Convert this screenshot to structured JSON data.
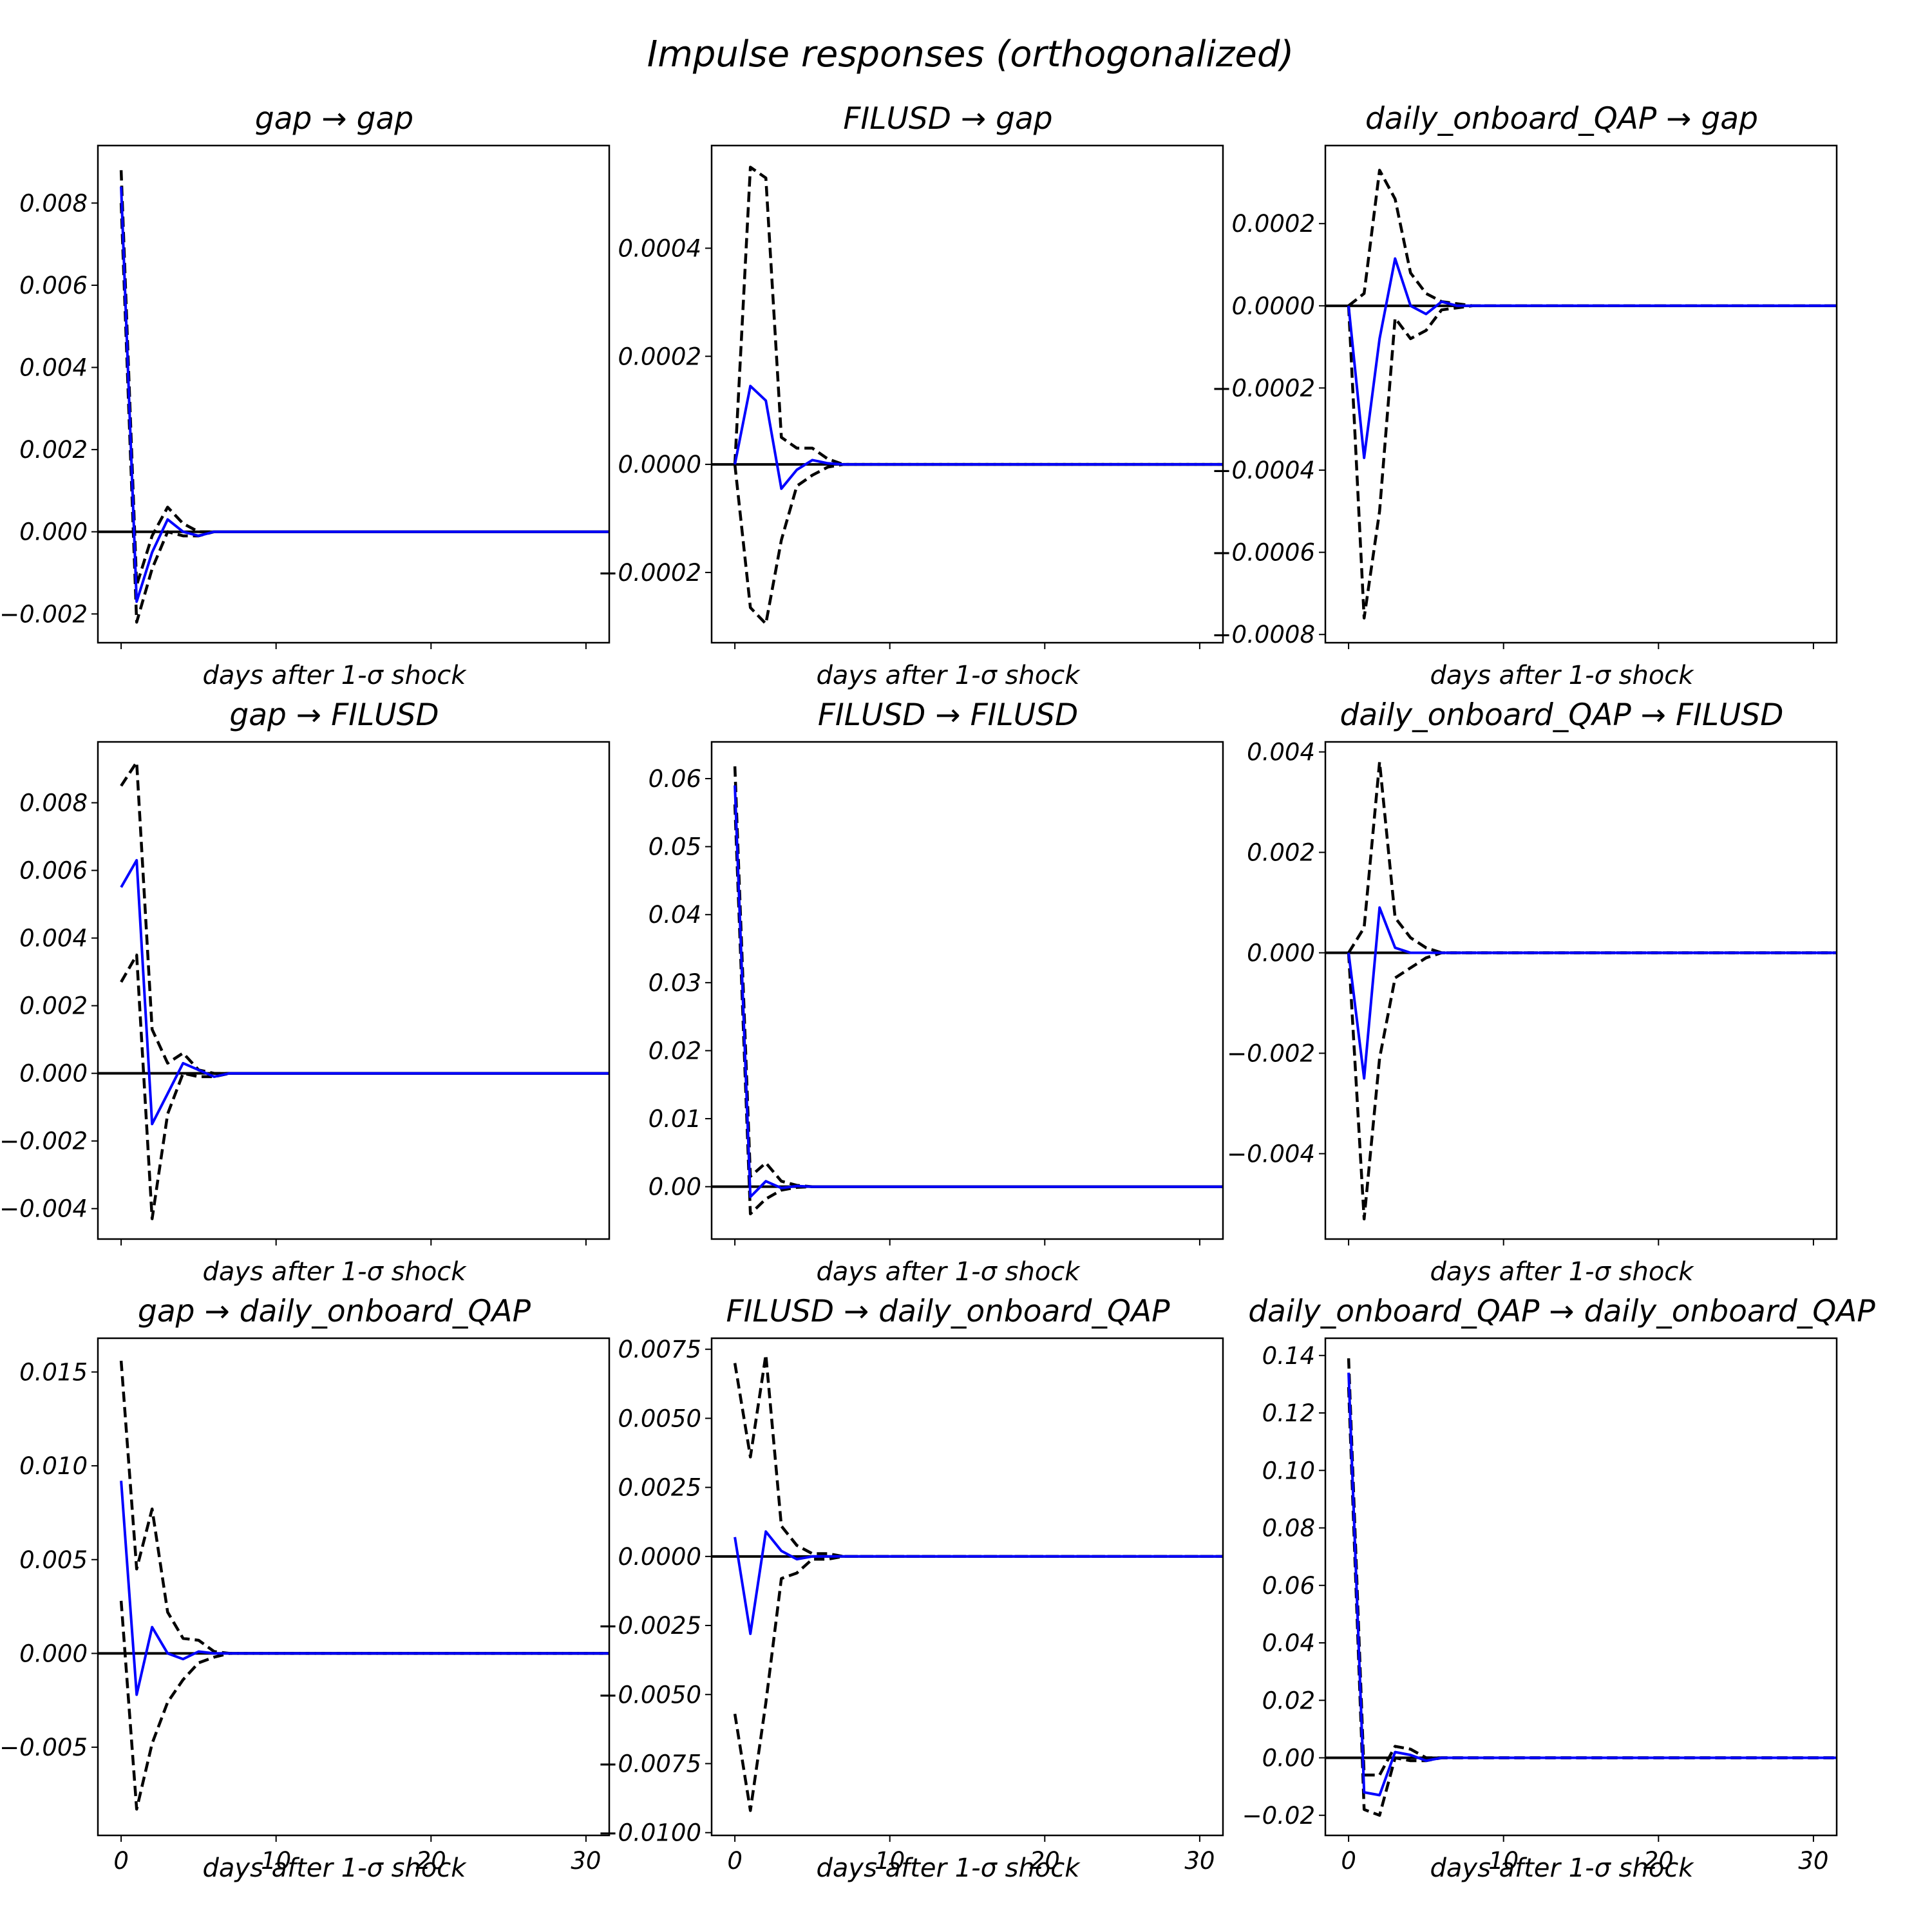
{
  "figure": {
    "title": "Impulse responses (orthogonalized)"
  },
  "chart_data": [
    {
      "type": "line",
      "title": "gap → gap",
      "xlabel": "days after 1-σ shock",
      "ylabel": "",
      "xlim": [
        -1.5,
        31.5
      ],
      "ylim": [
        -0.0027,
        0.0094
      ],
      "xticks": [
        0,
        10,
        20,
        30
      ],
      "xtick_labels": [
        "0",
        "10",
        "20",
        "30"
      ],
      "show_xtick_labels": false,
      "yticks": [
        -0.002,
        0.0,
        0.002,
        0.004,
        0.006,
        0.008
      ],
      "ytick_labels": [
        "−0.002",
        "0.000",
        "0.002",
        "0.004",
        "0.006",
        "0.008"
      ],
      "x": [
        0,
        1,
        2,
        3,
        4,
        5,
        6,
        7,
        8,
        10,
        15,
        20,
        25,
        30,
        31.5
      ],
      "series": [
        {
          "role": "response",
          "color": "#0000ff",
          "values": [
            0.0084,
            -0.0017,
            -0.0005,
            0.0003,
            0.0,
            -0.0001,
            0.0,
            0.0,
            0.0,
            0.0,
            0.0,
            0.0,
            0.0,
            0.0,
            0.0
          ]
        },
        {
          "role": "upper",
          "color": "#000000",
          "values": [
            0.0088,
            -0.0013,
            -0.0001,
            0.0006,
            0.0002,
            0.0,
            0.0,
            0.0,
            0.0,
            0.0,
            0.0,
            0.0,
            0.0,
            0.0,
            0.0
          ]
        },
        {
          "role": "lower",
          "color": "#000000",
          "values": [
            0.008,
            -0.0022,
            -0.0009,
            0.0,
            -0.0001,
            -0.0001,
            0.0,
            0.0,
            0.0,
            0.0,
            0.0,
            0.0,
            0.0,
            0.0,
            0.0
          ]
        }
      ]
    },
    {
      "type": "line",
      "title": "FILUSD → gap",
      "xlabel": "days after 1-σ shock",
      "ylabel": "",
      "xlim": [
        -1.5,
        31.5
      ],
      "ylim": [
        -0.00033,
        0.00059
      ],
      "xticks": [
        0,
        10,
        20,
        30
      ],
      "xtick_labels": [
        "0",
        "10",
        "20",
        "30"
      ],
      "show_xtick_labels": false,
      "yticks": [
        -0.0002,
        0.0,
        0.0002,
        0.0004
      ],
      "ytick_labels": [
        "−0.0002",
        "0.0000",
        "0.0002",
        "0.0004"
      ],
      "x": [
        0,
        1,
        2,
        3,
        4,
        5,
        6,
        7,
        8,
        10,
        15,
        20,
        25,
        30,
        31.5
      ],
      "series": [
        {
          "role": "response",
          "color": "#0000ff",
          "values": [
            0.0,
            0.000145,
            0.000118,
            -4.5e-05,
            -1e-05,
            8e-06,
            2e-06,
            0.0,
            0.0,
            0.0,
            0.0,
            0.0,
            0.0,
            0.0,
            0.0
          ]
        },
        {
          "role": "upper",
          "color": "#000000",
          "values": [
            0.0,
            0.00055,
            0.00053,
            5e-05,
            3e-05,
            3e-05,
            1e-05,
            0.0,
            0.0,
            0.0,
            0.0,
            0.0,
            0.0,
            0.0,
            0.0
          ]
        },
        {
          "role": "lower",
          "color": "#000000",
          "values": [
            0.0,
            -0.000265,
            -0.000295,
            -0.00014,
            -4e-05,
            -2e-05,
            -5e-06,
            0.0,
            0.0,
            0.0,
            0.0,
            0.0,
            0.0,
            0.0,
            0.0
          ]
        }
      ]
    },
    {
      "type": "line",
      "title": "daily_onboard_QAP → gap",
      "xlabel": "days after 1-σ shock",
      "ylabel": "",
      "xlim": [
        -1.5,
        31.5
      ],
      "ylim": [
        -0.00082,
        0.00039
      ],
      "xticks": [
        0,
        10,
        20,
        30
      ],
      "xtick_labels": [
        "0",
        "10",
        "20",
        "30"
      ],
      "show_xtick_labels": false,
      "yticks": [
        -0.0008,
        -0.0006,
        -0.0004,
        -0.0002,
        0.0,
        0.0002
      ],
      "ytick_labels": [
        "−0.0008",
        "−0.0006",
        "−0.0004",
        "−0.0002",
        "0.0000",
        "0.0002"
      ],
      "x": [
        0,
        1,
        2,
        3,
        4,
        5,
        6,
        7,
        8,
        10,
        15,
        20,
        25,
        30,
        31.5
      ],
      "series": [
        {
          "role": "response",
          "color": "#0000ff",
          "values": [
            0.0,
            -0.00037,
            -8e-05,
            0.000115,
            0.0,
            -2e-05,
            1e-05,
            0.0,
            0.0,
            0.0,
            0.0,
            0.0,
            0.0,
            0.0,
            0.0
          ]
        },
        {
          "role": "upper",
          "color": "#000000",
          "values": [
            0.0,
            3e-05,
            0.00033,
            0.00026,
            8e-05,
            3e-05,
            1e-05,
            5e-06,
            0.0,
            0.0,
            0.0,
            0.0,
            0.0,
            0.0,
            0.0
          ]
        },
        {
          "role": "lower",
          "color": "#000000",
          "values": [
            0.0,
            -0.00076,
            -0.0005,
            -3e-05,
            -8e-05,
            -6e-05,
            -1e-05,
            -5e-06,
            0.0,
            0.0,
            0.0,
            0.0,
            0.0,
            0.0,
            0.0
          ]
        }
      ]
    },
    {
      "type": "line",
      "title": "gap → FILUSD",
      "xlabel": "days after 1-σ shock",
      "ylabel": "",
      "xlim": [
        -1.5,
        31.5
      ],
      "ylim": [
        -0.0049,
        0.0098
      ],
      "xticks": [
        0,
        10,
        20,
        30
      ],
      "xtick_labels": [
        "0",
        "10",
        "20",
        "30"
      ],
      "show_xtick_labels": false,
      "yticks": [
        -0.004,
        -0.002,
        0.0,
        0.002,
        0.004,
        0.006,
        0.008
      ],
      "ytick_labels": [
        "−0.004",
        "−0.002",
        "0.000",
        "0.002",
        "0.004",
        "0.006",
        "0.008"
      ],
      "x": [
        0,
        1,
        2,
        3,
        4,
        5,
        6,
        7,
        8,
        10,
        15,
        20,
        25,
        30,
        31.5
      ],
      "series": [
        {
          "role": "response",
          "color": "#0000ff",
          "values": [
            0.0055,
            0.0063,
            -0.0015,
            -0.0006,
            0.0003,
            0.0001,
            -0.0001,
            0.0,
            0.0,
            0.0,
            0.0,
            0.0,
            0.0,
            0.0,
            0.0
          ]
        },
        {
          "role": "upper",
          "color": "#000000",
          "values": [
            0.0085,
            0.0092,
            0.0013,
            0.0003,
            0.0006,
            0.0001,
            0.0,
            0.0,
            0.0,
            0.0,
            0.0,
            0.0,
            0.0,
            0.0,
            0.0
          ]
        },
        {
          "role": "lower",
          "color": "#000000",
          "values": [
            0.0027,
            0.0035,
            -0.0043,
            -0.0012,
            0.0,
            -0.0001,
            -0.0001,
            0.0,
            0.0,
            0.0,
            0.0,
            0.0,
            0.0,
            0.0,
            0.0
          ]
        }
      ]
    },
    {
      "type": "line",
      "title": "FILUSD → FILUSD",
      "xlabel": "days after 1-σ shock",
      "ylabel": "",
      "xlim": [
        -1.5,
        31.5
      ],
      "ylim": [
        -0.0077,
        0.0654
      ],
      "xticks": [
        0,
        10,
        20,
        30
      ],
      "xtick_labels": [
        "0",
        "10",
        "20",
        "30"
      ],
      "show_xtick_labels": false,
      "yticks": [
        0.0,
        0.01,
        0.02,
        0.03,
        0.04,
        0.05,
        0.06
      ],
      "ytick_labels": [
        "0.00",
        "0.01",
        "0.02",
        "0.03",
        "0.04",
        "0.05",
        "0.06"
      ],
      "x": [
        0,
        1,
        2,
        3,
        4,
        5,
        6,
        7,
        8,
        10,
        15,
        20,
        25,
        30,
        31.5
      ],
      "series": [
        {
          "role": "response",
          "color": "#0000ff",
          "values": [
            0.059,
            -0.0015,
            0.0008,
            -0.0002,
            0.0001,
            0.0,
            0.0,
            0.0,
            0.0,
            0.0,
            0.0,
            0.0,
            0.0,
            0.0,
            0.0
          ]
        },
        {
          "role": "upper",
          "color": "#000000",
          "values": [
            0.0618,
            0.0015,
            0.0035,
            0.0008,
            0.0002,
            0.0,
            0.0,
            0.0,
            0.0,
            0.0,
            0.0,
            0.0,
            0.0,
            0.0,
            0.0
          ]
        },
        {
          "role": "lower",
          "color": "#000000",
          "values": [
            0.0562,
            -0.004,
            -0.0018,
            -0.0005,
            -0.0001,
            0.0,
            0.0,
            0.0,
            0.0,
            0.0,
            0.0,
            0.0,
            0.0,
            0.0,
            0.0
          ]
        }
      ]
    },
    {
      "type": "line",
      "title": "daily_onboard_QAP → FILUSD",
      "xlabel": "days after 1-σ shock",
      "ylabel": "",
      "xlim": [
        -1.5,
        31.5
      ],
      "ylim": [
        -0.0057,
        0.0042
      ],
      "xticks": [
        0,
        10,
        20,
        30
      ],
      "xtick_labels": [
        "0",
        "10",
        "20",
        "30"
      ],
      "show_xtick_labels": false,
      "yticks": [
        -0.004,
        -0.002,
        0.0,
        0.002,
        0.004
      ],
      "ytick_labels": [
        "−0.004",
        "−0.002",
        "0.000",
        "0.002",
        "0.004"
      ],
      "x": [
        0,
        1,
        2,
        3,
        4,
        5,
        6,
        7,
        8,
        10,
        15,
        20,
        25,
        30,
        31.5
      ],
      "series": [
        {
          "role": "response",
          "color": "#0000ff",
          "values": [
            0.0,
            -0.0025,
            0.0009,
            0.0001,
            0.0,
            0.0,
            0.0,
            0.0,
            0.0,
            0.0,
            0.0,
            0.0,
            0.0,
            0.0,
            0.0
          ]
        },
        {
          "role": "upper",
          "color": "#000000",
          "values": [
            0.0,
            0.0005,
            0.0038,
            0.0007,
            0.0003,
            0.0001,
            0.0,
            0.0,
            0.0,
            0.0,
            0.0,
            0.0,
            0.0,
            0.0,
            0.0
          ]
        },
        {
          "role": "lower",
          "color": "#000000",
          "values": [
            0.0,
            -0.0053,
            -0.0021,
            -0.0005,
            -0.0003,
            -0.0001,
            0.0,
            0.0,
            0.0,
            0.0,
            0.0,
            0.0,
            0.0,
            0.0,
            0.0
          ]
        }
      ]
    },
    {
      "type": "line",
      "title": "gap → daily_onboard_QAP",
      "xlabel": "days after 1-σ shock",
      "ylabel": "",
      "xlim": [
        -1.5,
        31.5
      ],
      "ylim": [
        -0.0097,
        0.0168
      ],
      "xticks": [
        0,
        10,
        20,
        30
      ],
      "xtick_labels": [
        "0",
        "10",
        "20",
        "30"
      ],
      "show_xtick_labels": true,
      "yticks": [
        -0.005,
        0.0,
        0.005,
        0.01,
        0.015
      ],
      "ytick_labels": [
        "−0.005",
        "0.000",
        "0.005",
        "0.010",
        "0.015"
      ],
      "x": [
        0,
        1,
        2,
        3,
        4,
        5,
        6,
        7,
        8,
        10,
        15,
        20,
        25,
        30,
        31.5
      ],
      "series": [
        {
          "role": "response",
          "color": "#0000ff",
          "values": [
            0.0092,
            -0.0022,
            0.0014,
            0.0,
            -0.0003,
            0.0001,
            0.0,
            0.0,
            0.0,
            0.0,
            0.0,
            0.0,
            0.0,
            0.0,
            0.0
          ]
        },
        {
          "role": "upper",
          "color": "#000000",
          "values": [
            0.0156,
            0.0045,
            0.0077,
            0.0022,
            0.0008,
            0.0007,
            0.0001,
            0.0,
            0.0,
            0.0,
            0.0,
            0.0,
            0.0,
            0.0,
            0.0
          ]
        },
        {
          "role": "lower",
          "color": "#000000",
          "values": [
            0.0028,
            -0.0083,
            -0.0048,
            -0.0026,
            -0.0014,
            -0.0005,
            -0.0002,
            0.0,
            0.0,
            0.0,
            0.0,
            0.0,
            0.0,
            0.0,
            0.0
          ]
        }
      ]
    },
    {
      "type": "line",
      "title": "FILUSD → daily_onboard_QAP",
      "xlabel": "days after 1-σ shock",
      "ylabel": "",
      "xlim": [
        -1.5,
        31.5
      ],
      "ylim": [
        -0.0101,
        0.0079
      ],
      "xticks": [
        0,
        10,
        20,
        30
      ],
      "xtick_labels": [
        "0",
        "10",
        "20",
        "30"
      ],
      "show_xtick_labels": true,
      "yticks": [
        -0.01,
        -0.0075,
        -0.005,
        -0.0025,
        0.0,
        0.0025,
        0.005,
        0.0075
      ],
      "ytick_labels": [
        "−0.0100",
        "−0.0075",
        "−0.0050",
        "−0.0025",
        "0.0000",
        "0.0025",
        "0.0050",
        "0.0075"
      ],
      "x": [
        0,
        1,
        2,
        3,
        4,
        5,
        6,
        7,
        8,
        10,
        15,
        20,
        25,
        30,
        31.5
      ],
      "series": [
        {
          "role": "response",
          "color": "#0000ff",
          "values": [
            0.0007,
            -0.0028,
            0.0009,
            0.0002,
            -0.0001,
            0.0,
            0.0,
            0.0,
            0.0,
            0.0,
            0.0,
            0.0,
            0.0,
            0.0,
            0.0
          ]
        },
        {
          "role": "upper",
          "color": "#000000",
          "values": [
            0.007,
            0.0036,
            0.0073,
            0.0011,
            0.0004,
            0.0001,
            0.0001,
            0.0,
            0.0,
            0.0,
            0.0,
            0.0,
            0.0,
            0.0,
            0.0
          ]
        },
        {
          "role": "lower",
          "color": "#000000",
          "values": [
            -0.0057,
            -0.0092,
            -0.0053,
            -0.0008,
            -0.0006,
            -0.0001,
            -0.0001,
            0.0,
            0.0,
            0.0,
            0.0,
            0.0,
            0.0,
            0.0,
            0.0
          ]
        }
      ]
    },
    {
      "type": "line",
      "title": "daily_onboard_QAP → daily_onboard_QAP",
      "xlabel": "days after 1-σ shock",
      "ylabel": "",
      "xlim": [
        -1.5,
        31.5
      ],
      "ylim": [
        -0.027,
        0.146
      ],
      "xticks": [
        0,
        10,
        20,
        30
      ],
      "xtick_labels": [
        "0",
        "10",
        "20",
        "30"
      ],
      "show_xtick_labels": true,
      "yticks": [
        -0.02,
        0.0,
        0.02,
        0.04,
        0.06,
        0.08,
        0.1,
        0.12,
        0.14
      ],
      "ytick_labels": [
        "−0.02",
        "0.00",
        "0.02",
        "0.04",
        "0.06",
        "0.08",
        "0.10",
        "0.12",
        "0.14"
      ],
      "x": [
        0,
        1,
        2,
        3,
        4,
        5,
        6,
        7,
        8,
        10,
        15,
        20,
        25,
        30,
        31.5
      ],
      "series": [
        {
          "role": "response",
          "color": "#0000ff",
          "values": [
            0.134,
            -0.012,
            -0.013,
            0.002,
            0.001,
            -0.001,
            0.0,
            0.0,
            0.0,
            0.0,
            0.0,
            0.0,
            0.0,
            0.0,
            0.0
          ]
        },
        {
          "role": "upper",
          "color": "#000000",
          "values": [
            0.139,
            -0.006,
            -0.006,
            0.004,
            0.003,
            0.0,
            0.0,
            0.0,
            0.0,
            0.0,
            0.0,
            0.0,
            0.0,
            0.0,
            0.0
          ]
        },
        {
          "role": "lower",
          "color": "#000000",
          "values": [
            0.129,
            -0.018,
            -0.02,
            0.0,
            -0.001,
            -0.001,
            0.0,
            0.0,
            0.0,
            0.0,
            0.0,
            0.0,
            0.0,
            0.0,
            0.0
          ]
        }
      ]
    }
  ]
}
